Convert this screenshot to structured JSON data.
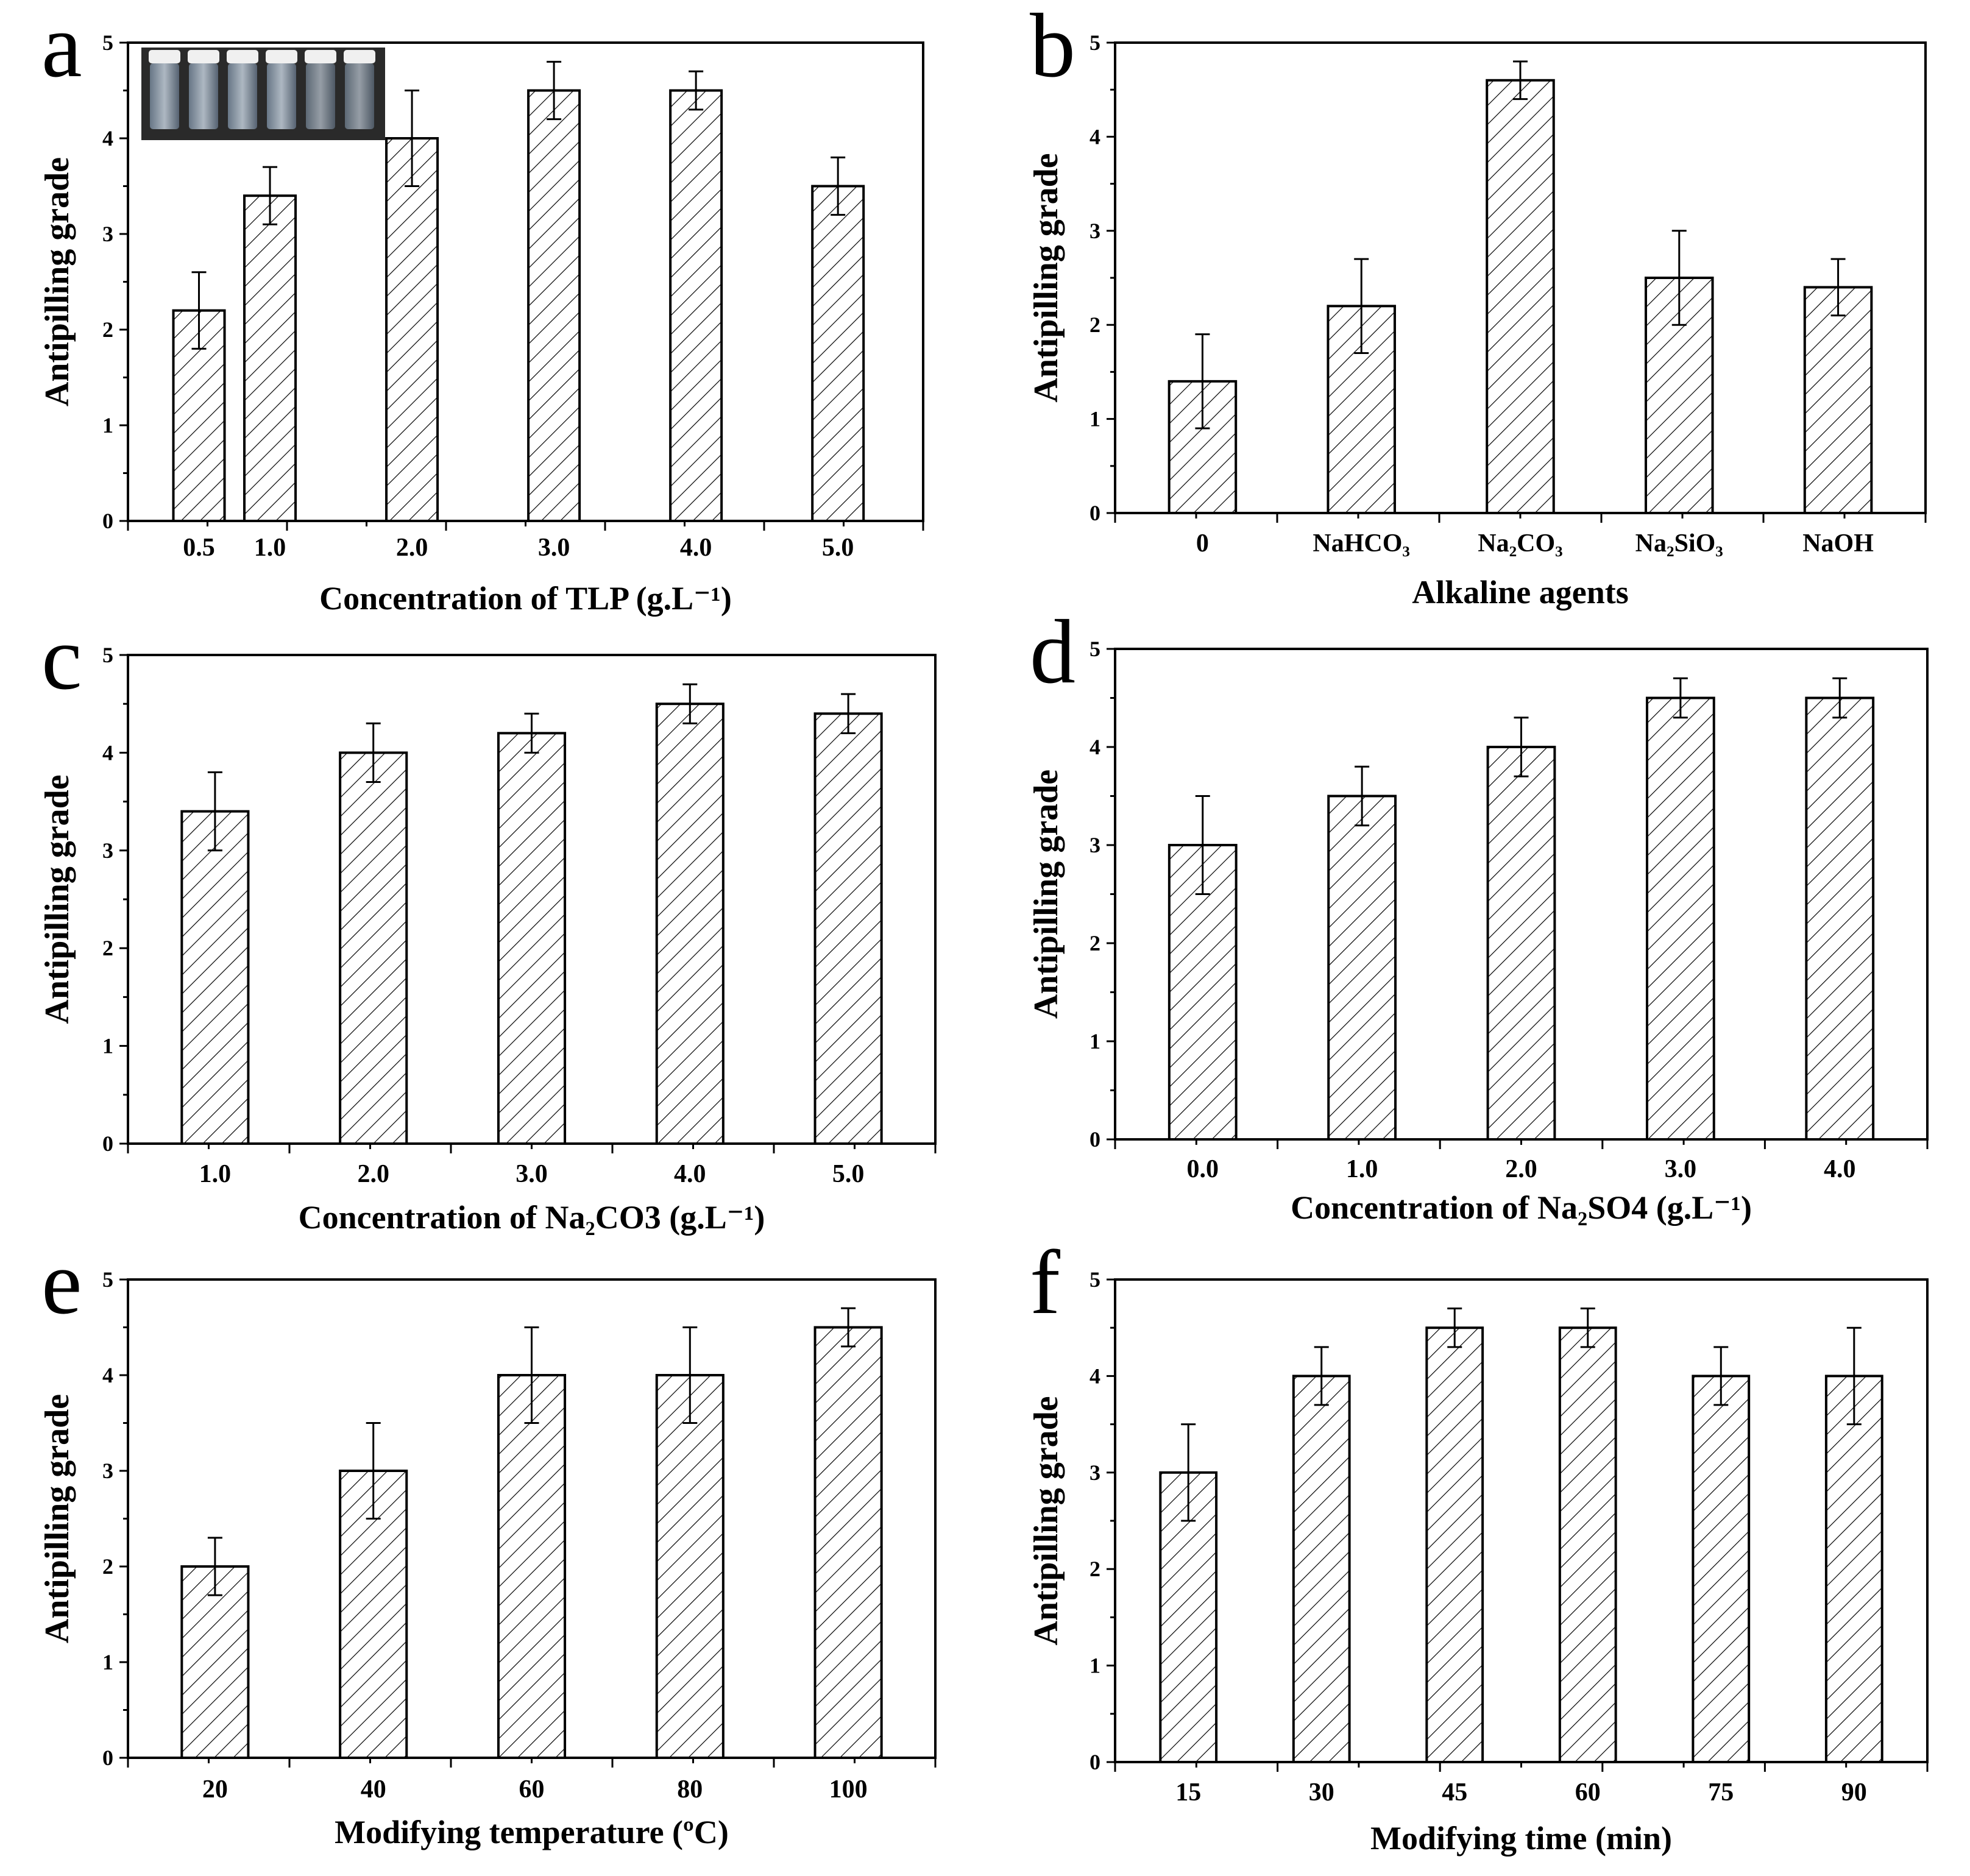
{
  "figure": {
    "panels": [
      {
        "letter": "a",
        "chart_data": {
          "type": "bar",
          "categories": [
            "0.5",
            "1.0",
            "2.0",
            "3.0",
            "4.0",
            "5.0"
          ],
          "x": [
            0.5,
            1.0,
            2.0,
            3.0,
            4.0,
            5.0
          ],
          "values": [
            2.2,
            3.4,
            4.0,
            4.5,
            4.5,
            3.5
          ],
          "errors": [
            0.4,
            0.3,
            0.5,
            0.3,
            0.2,
            0.3
          ],
          "xlabel": "Concentration of TLP (g.L⁻¹)",
          "ylabel": "Antipilling grade",
          "ylim": [
            0,
            5
          ],
          "yticks": [
            "0",
            "1",
            "2",
            "3",
            "4",
            "5"
          ],
          "inset": "photo of six sample vials"
        }
      },
      {
        "letter": "b",
        "chart_data": {
          "type": "bar",
          "categories": [
            "0",
            "NaHCO₃",
            "Na₂CO₃",
            "Na₂SiO₃",
            "NaOH"
          ],
          "values": [
            1.4,
            2.2,
            4.6,
            2.5,
            2.4
          ],
          "errors": [
            0.5,
            0.5,
            0.2,
            0.5,
            0.3
          ],
          "xlabel": "Alkaline agents",
          "ylabel": "Antipilling grade",
          "ylim": [
            0,
            5
          ],
          "yticks": [
            "0",
            "1",
            "2",
            "3",
            "4",
            "5"
          ]
        }
      },
      {
        "letter": "c",
        "chart_data": {
          "type": "bar",
          "categories": [
            "1.0",
            "2.0",
            "3.0",
            "4.0",
            "5.0"
          ],
          "values": [
            3.4,
            4.0,
            4.2,
            4.5,
            4.4
          ],
          "errors": [
            0.4,
            0.3,
            0.2,
            0.2,
            0.2
          ],
          "xlabel": "Concentration of Na₂CO3 (g.L⁻¹)",
          "ylabel": "Antipilling grade",
          "ylim": [
            0,
            5
          ],
          "yticks": [
            "0",
            "1",
            "2",
            "3",
            "4",
            "5"
          ]
        }
      },
      {
        "letter": "d",
        "chart_data": {
          "type": "bar",
          "categories": [
            "0.0",
            "1.0",
            "2.0",
            "3.0",
            "4.0"
          ],
          "values": [
            3.0,
            3.5,
            4.0,
            4.5,
            4.5
          ],
          "errors": [
            0.5,
            0.3,
            0.3,
            0.2,
            0.2
          ],
          "xlabel": "Concentration of Na₂SO4 (g.L⁻¹)",
          "ylabel": "Antipilling grade",
          "ylim": [
            0,
            5
          ],
          "yticks": [
            "0",
            "1",
            "2",
            "3",
            "4",
            "5"
          ]
        }
      },
      {
        "letter": "e",
        "chart_data": {
          "type": "bar",
          "categories": [
            "20",
            "40",
            "60",
            "80",
            "100"
          ],
          "values": [
            2.0,
            3.0,
            4.0,
            4.0,
            4.5
          ],
          "errors": [
            0.3,
            0.5,
            0.5,
            0.5,
            0.2
          ],
          "xlabel": "Modifying temperature (ºC)",
          "ylabel": "Antipilling grade",
          "ylim": [
            0,
            5
          ],
          "yticks": [
            "0",
            "1",
            "2",
            "3",
            "4",
            "5"
          ]
        }
      },
      {
        "letter": "f",
        "chart_data": {
          "type": "bar",
          "categories": [
            "15",
            "30",
            "45",
            "60",
            "75",
            "90"
          ],
          "values": [
            3.0,
            4.0,
            4.5,
            4.5,
            4.0,
            4.0
          ],
          "errors": [
            0.5,
            0.3,
            0.2,
            0.2,
            0.3,
            0.5
          ],
          "xlabel": "Modifying time (min)",
          "ylabel": "Antipilling grade",
          "ylim": [
            0,
            5
          ],
          "yticks": [
            "0",
            "1",
            "2",
            "3",
            "4",
            "5"
          ]
        }
      }
    ]
  }
}
